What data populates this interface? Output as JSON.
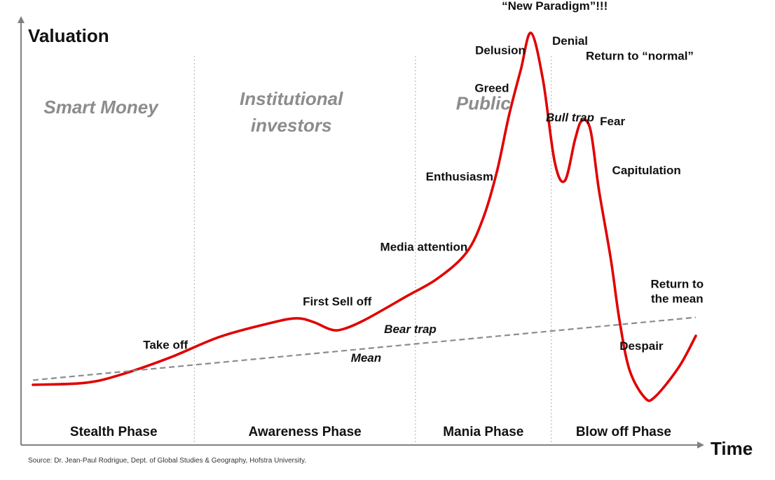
{
  "chart_data": {
    "type": "line",
    "xlabel": "Time",
    "ylabel": "Valuation",
    "x_ticks": false,
    "y_ticks": false,
    "grid": false,
    "colors": {
      "curve": "#e00000",
      "mean": "#8c8c8c",
      "axis": "#808080",
      "divider": "#c0c0c0",
      "group_label": "#8c8c8c"
    },
    "series": [
      {
        "name": "",
        "style": "solid",
        "points": [
          [
            0.0,
            0.19
          ],
          [
            3.0,
            0.21
          ],
          [
            5.0,
            0.29
          ],
          [
            8.0,
            0.48
          ],
          [
            11.0,
            0.71
          ],
          [
            14.0,
            0.86
          ],
          [
            15.5,
            0.91
          ],
          [
            16.5,
            0.87
          ],
          [
            17.5,
            0.79
          ],
          [
            18.2,
            0.79
          ],
          [
            19.5,
            0.89
          ],
          [
            22.0,
            1.15
          ],
          [
            23.8,
            1.34
          ],
          [
            25.5,
            1.62
          ],
          [
            26.5,
            2.0
          ],
          [
            27.3,
            2.5
          ],
          [
            28.0,
            3.1
          ],
          [
            28.7,
            3.6
          ],
          [
            29.3,
            4.0
          ],
          [
            30.0,
            3.5
          ],
          [
            30.7,
            2.6
          ],
          [
            31.3,
            2.4
          ],
          [
            31.9,
            2.85
          ],
          [
            32.3,
            3.05
          ],
          [
            32.8,
            2.95
          ],
          [
            33.3,
            2.3
          ],
          [
            34.0,
            1.55
          ],
          [
            34.5,
            0.9
          ],
          [
            35.1,
            0.35
          ],
          [
            36.0,
            0.05
          ],
          [
            36.6,
            0.06
          ],
          [
            38.0,
            0.38
          ],
          [
            39.0,
            0.72
          ]
        ]
      },
      {
        "name": "Mean",
        "style": "dashed",
        "points": [
          [
            0.0,
            0.24
          ],
          [
            39.0,
            0.92
          ]
        ]
      }
    ],
    "phases": [
      {
        "name": "Stealth Phase",
        "x_range": [
          0,
          9.5
        ]
      },
      {
        "name": "Awareness Phase",
        "x_range": [
          9.5,
          22.5
        ]
      },
      {
        "name": "Mania Phase",
        "x_range": [
          22.5,
          30.5
        ]
      },
      {
        "name": "Blow off Phase",
        "x_range": [
          30.5,
          39.0
        ]
      }
    ],
    "dividers_x": [
      9.5,
      22.5,
      30.5
    ],
    "groups": [
      {
        "lines": [
          "Smart Money"
        ],
        "x": 4.0,
        "y": 3.13
      },
      {
        "lines": [
          "Institutional",
          "investors"
        ],
        "x": 15.2,
        "y": 3.22
      },
      {
        "lines": [
          "Public"
        ],
        "x": 26.5,
        "y": 3.17
      }
    ],
    "annotations": [
      {
        "text": "Take off",
        "x": 7.8,
        "y": 0.58,
        "style": "normal"
      },
      {
        "text": "First Sell off",
        "x": 17.9,
        "y": 1.05,
        "style": "normal"
      },
      {
        "text": "Bear trap",
        "x": 22.2,
        "y": 0.75,
        "style": "italic"
      },
      {
        "text": "Mean",
        "x": 19.6,
        "y": 0.44,
        "style": "italic"
      },
      {
        "text": "Media attention",
        "x": 23.0,
        "y": 1.64,
        "style": "normal"
      },
      {
        "text": "Enthusiasm",
        "x": 25.1,
        "y": 2.4,
        "style": "normal"
      },
      {
        "text": "Greed",
        "x": 27.0,
        "y": 3.36,
        "style": "normal"
      },
      {
        "text": "Delusion",
        "x": 27.5,
        "y": 3.77,
        "style": "normal"
      },
      {
        "text": "“New Paradigm”!!!",
        "x": 30.7,
        "y": 4.25,
        "style": "normal"
      },
      {
        "text": "Denial",
        "x": 31.6,
        "y": 3.87,
        "style": "normal"
      },
      {
        "text": "Return to “normal”",
        "x": 35.7,
        "y": 3.71,
        "style": "normal"
      },
      {
        "text": "Bull trap",
        "x": 31.6,
        "y": 3.04,
        "style": "italic"
      },
      {
        "text": "Fear",
        "x": 34.1,
        "y": 3.0,
        "style": "normal"
      },
      {
        "text": "Capitulation",
        "x": 36.1,
        "y": 2.47,
        "style": "normal"
      },
      {
        "text": "Return to",
        "x": 37.9,
        "y": 1.24,
        "style": "normal"
      },
      {
        "text": "the mean",
        "x": 37.9,
        "y": 1.08,
        "style": "normal"
      },
      {
        "text": "Despair",
        "x": 35.8,
        "y": 0.57,
        "style": "normal"
      }
    ],
    "source": "Source: Dr. Jean-Paul Rodrigue, Dept. of Global Studies & Geography, Hofstra University."
  }
}
